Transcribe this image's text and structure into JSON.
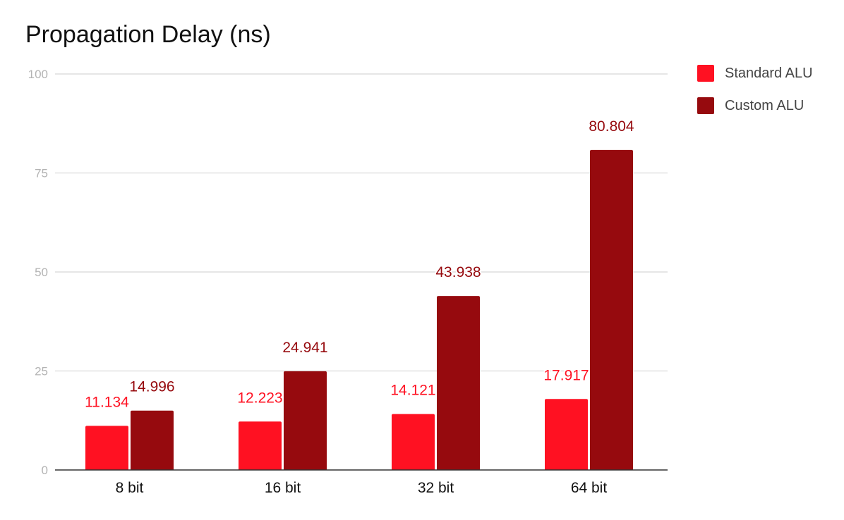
{
  "chart_data": {
    "type": "bar",
    "title": "Propagation Delay (ns)",
    "categories": [
      "8 bit",
      "16 bit",
      "32 bit",
      "64 bit"
    ],
    "series": [
      {
        "name": "Standard ALU",
        "color": "#ff1122",
        "values": [
          11.134,
          12.223,
          14.121,
          17.917
        ]
      },
      {
        "name": "Custom ALU",
        "color": "#960a0e",
        "values": [
          14.996,
          24.941,
          43.938,
          80.804
        ]
      }
    ],
    "ylim": [
      0,
      100
    ],
    "yticks": [
      0,
      25,
      50,
      75,
      100
    ],
    "grid": true,
    "legend_position": "right",
    "data_labels": true
  }
}
